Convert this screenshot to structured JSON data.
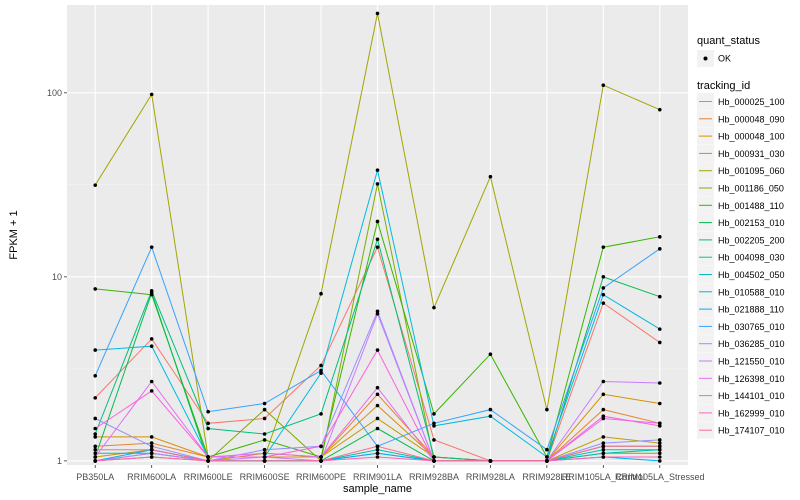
{
  "chart_data": {
    "type": "line",
    "xlabel": "sample_name",
    "ylabel": "FPKM + 1",
    "y_scale": "log10",
    "ylim": [
      0.95,
      300
    ],
    "y_ticks": [
      1,
      10,
      100
    ],
    "y_tick_labels": [
      "1",
      "10",
      "100"
    ],
    "grid": true,
    "legend_position": "right",
    "categories": [
      "PB350LA",
      "RRIM600LA",
      "RRIM600LE",
      "RRIM600SE",
      "RRIM600PE",
      "RRIM901LA",
      "RRIM928BA",
      "RRIM928LA",
      "RRIM928LE",
      "RRIM105LA_Control",
      "RRIM105LA_Stressed"
    ],
    "category_labels": [
      "PB350LA",
      "RRIM600LA",
      "RRIM600LE",
      "RRIM600SE",
      "RRIM600PE",
      "RRIM901LA",
      "RRIM928BA",
      "RRIM928LA",
      "RRIM928LE",
      "RRIM105LA_Control",
      "RRIM105LA_Stressed"
    ],
    "quant_status_legend": {
      "title": "quant_status",
      "items": [
        "OK"
      ]
    },
    "legend_title": "tracking_id",
    "series": [
      {
        "name": "Hb_000025_100",
        "color": "#F8766D",
        "values": [
          2.2,
          4.6,
          1.6,
          1.7,
          3.3,
          14.5,
          1.3,
          1.0,
          1.0,
          7.2,
          4.4
        ]
      },
      {
        "name": "Hb_000048_090",
        "color": "#EA8331",
        "values": [
          1.2,
          1.25,
          1.05,
          1.05,
          1.05,
          2.3,
          1.05,
          1.0,
          1.0,
          1.9,
          1.6
        ]
      },
      {
        "name": "Hb_000048_100",
        "color": "#D89000",
        "values": [
          1.35,
          1.35,
          1.05,
          1.05,
          1.05,
          2.0,
          1.05,
          1.0,
          1.0,
          2.3,
          2.05
        ]
      },
      {
        "name": "Hb_000931_030",
        "color": "#C09B00",
        "values": [
          1.05,
          1.15,
          1.0,
          1.1,
          1.05,
          1.7,
          1.05,
          1.0,
          1.0,
          1.35,
          1.25
        ]
      },
      {
        "name": "Hb_001095_060",
        "color": "#A3A500",
        "values": [
          31.5,
          98,
          1.05,
          1.05,
          8.1,
          270,
          6.8,
          35,
          1.9,
          110,
          81
        ]
      },
      {
        "name": "Hb_001186_050",
        "color": "#7CAE00",
        "values": [
          1.0,
          1.05,
          1.0,
          1.9,
          1.0,
          32,
          1.0,
          1.0,
          1.0,
          1.1,
          1.1
        ]
      },
      {
        "name": "Hb_001488_110",
        "color": "#39B600",
        "values": [
          8.6,
          8.0,
          1.05,
          1.3,
          1.05,
          20,
          1.8,
          3.8,
          1.05,
          14.5,
          16.5
        ]
      },
      {
        "name": "Hb_002153_010",
        "color": "#00BB4E",
        "values": [
          1.05,
          8.2,
          1.0,
          1.0,
          1.0,
          1.5,
          1.0,
          1.0,
          1.0,
          10.0,
          7.8
        ]
      },
      {
        "name": "Hb_002205_200",
        "color": "#00BF7D",
        "values": [
          1.4,
          8.4,
          1.5,
          1.4,
          1.8,
          16,
          1.05,
          1.0,
          1.0,
          1.2,
          1.2
        ]
      },
      {
        "name": "Hb_004098_030",
        "color": "#00C1A3",
        "values": [
          1.0,
          1.1,
          1.0,
          1.0,
          1.0,
          1.15,
          1.0,
          1.0,
          1.0,
          1.1,
          1.15
        ]
      },
      {
        "name": "Hb_004502_050",
        "color": "#00BFC4",
        "values": [
          1.1,
          1.1,
          1.0,
          1.0,
          1.0,
          1.1,
          1.0,
          1.0,
          1.0,
          1.15,
          1.15
        ]
      },
      {
        "name": "Hb_010588_010",
        "color": "#00BAE0",
        "values": [
          4.0,
          4.2,
          1.05,
          1.05,
          3.0,
          38,
          1.55,
          1.75,
          1.05,
          8.0,
          5.2
        ]
      },
      {
        "name": "Hb_021888_110",
        "color": "#00B0F6",
        "values": [
          1.0,
          1.15,
          1.0,
          1.0,
          1.0,
          1.1,
          1.0,
          1.0,
          1.0,
          1.05,
          1.0
        ]
      },
      {
        "name": "Hb_030765_010",
        "color": "#35A2FF",
        "values": [
          2.9,
          14.5,
          1.85,
          2.05,
          3.1,
          1.2,
          1.6,
          1.9,
          1.15,
          8.7,
          14.2
        ]
      },
      {
        "name": "Hb_036285_010",
        "color": "#9590FF",
        "values": [
          1.7,
          1.2,
          1.0,
          1.15,
          1.2,
          6.5,
          1.0,
          1.0,
          1.0,
          1.25,
          1.3
        ]
      },
      {
        "name": "Hb_121550_010",
        "color": "#C77CFF",
        "values": [
          1.0,
          1.1,
          1.0,
          1.05,
          1.0,
          6.3,
          1.0,
          1.0,
          1.0,
          2.7,
          2.65
        ]
      },
      {
        "name": "Hb_126398_010",
        "color": "#E76BF3",
        "values": [
          1.05,
          2.7,
          1.05,
          1.1,
          1.05,
          2.5,
          1.0,
          1.0,
          1.0,
          1.7,
          1.6
        ]
      },
      {
        "name": "Hb_144101_010",
        "color": "#FA62DB",
        "values": [
          1.5,
          2.4,
          1.05,
          1.05,
          1.2,
          4.0,
          1.0,
          1.0,
          1.0,
          1.75,
          1.55
        ]
      },
      {
        "name": "Hb_162999_010",
        "color": "#FF62BC",
        "values": [
          1.0,
          1.05,
          1.0,
          1.0,
          1.0,
          1.05,
          1.0,
          1.0,
          1.0,
          1.05,
          1.05
        ]
      },
      {
        "name": "Hb_174107_010",
        "color": "#FF6C91",
        "values": [
          1.15,
          1.15,
          1.0,
          1.0,
          1.0,
          1.2,
          1.0,
          1.0,
          1.0,
          1.2,
          1.2
        ]
      }
    ]
  }
}
